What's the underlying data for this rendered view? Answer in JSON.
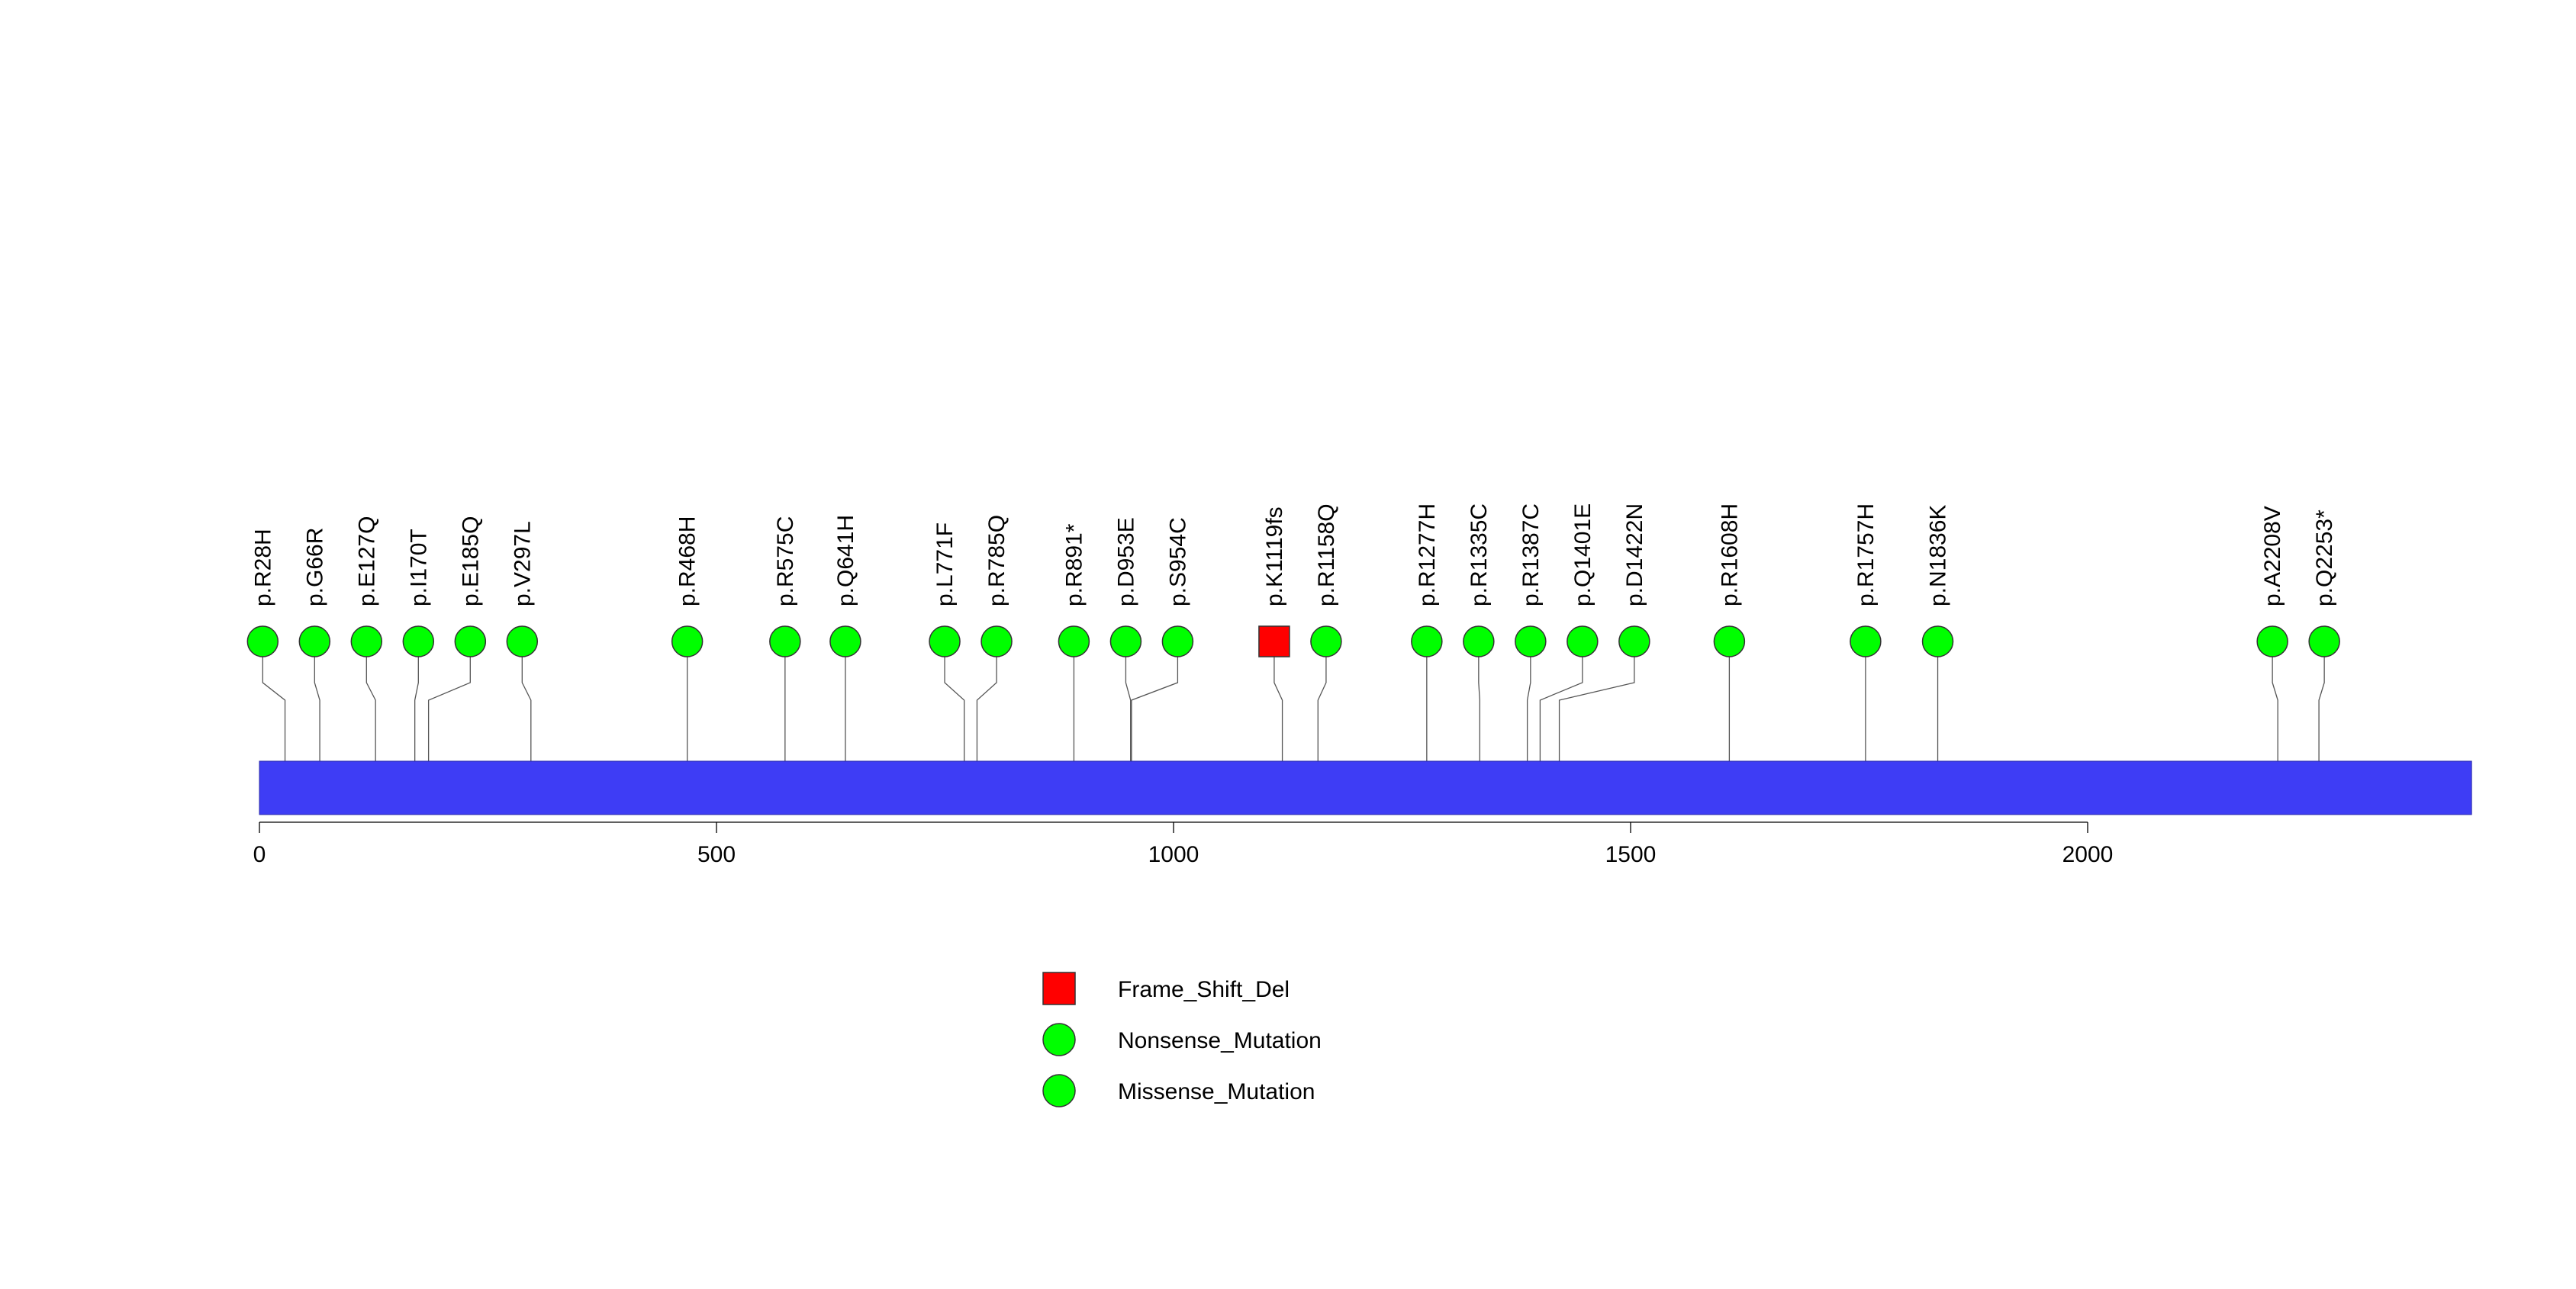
{
  "chart_data": {
    "type": "lollipop",
    "title": "",
    "xlabel": "",
    "ylabel": "",
    "xlim": [
      0,
      2420
    ],
    "x_ticks": [
      0,
      500,
      1000,
      1500,
      2000
    ],
    "x_tick_labels": [
      "0",
      "500",
      "1000",
      "1500",
      "2000"
    ],
    "protein_length": 2420,
    "protein_bar_color": "#3e3df5",
    "mutations": [
      {
        "label": "p.R28H",
        "position": 28,
        "type": "Missense_Mutation"
      },
      {
        "label": "p.G66R",
        "position": 66,
        "type": "Missense_Mutation"
      },
      {
        "label": "p.E127Q",
        "position": 127,
        "type": "Missense_Mutation"
      },
      {
        "label": "p.I170T",
        "position": 170,
        "type": "Missense_Mutation"
      },
      {
        "label": "p.E185Q",
        "position": 185,
        "type": "Missense_Mutation"
      },
      {
        "label": "p.V297L",
        "position": 297,
        "type": "Missense_Mutation"
      },
      {
        "label": "p.R468H",
        "position": 468,
        "type": "Missense_Mutation"
      },
      {
        "label": "p.R575C",
        "position": 575,
        "type": "Missense_Mutation"
      },
      {
        "label": "p.Q641H",
        "position": 641,
        "type": "Missense_Mutation"
      },
      {
        "label": "p.L771F",
        "position": 771,
        "type": "Missense_Mutation"
      },
      {
        "label": "p.R785Q",
        "position": 785,
        "type": "Missense_Mutation"
      },
      {
        "label": "p.R891*",
        "position": 891,
        "type": "Nonsense_Mutation"
      },
      {
        "label": "p.D953E",
        "position": 953,
        "type": "Missense_Mutation"
      },
      {
        "label": "p.S954C",
        "position": 954,
        "type": "Missense_Mutation"
      },
      {
        "label": "p.K1119fs",
        "position": 1119,
        "type": "Frame_Shift_Del"
      },
      {
        "label": "p.R1158Q",
        "position": 1158,
        "type": "Missense_Mutation"
      },
      {
        "label": "p.R1277H",
        "position": 1277,
        "type": "Missense_Mutation"
      },
      {
        "label": "p.R1335C",
        "position": 1335,
        "type": "Missense_Mutation"
      },
      {
        "label": "p.R1387C",
        "position": 1387,
        "type": "Missense_Mutation"
      },
      {
        "label": "p.Q1401E",
        "position": 1401,
        "type": "Missense_Mutation"
      },
      {
        "label": "p.D1422N",
        "position": 1422,
        "type": "Missense_Mutation"
      },
      {
        "label": "p.R1608H",
        "position": 1608,
        "type": "Missense_Mutation"
      },
      {
        "label": "p.R1757H",
        "position": 1757,
        "type": "Missense_Mutation"
      },
      {
        "label": "p.N1836K",
        "position": 1836,
        "type": "Missense_Mutation"
      },
      {
        "label": "p.A2208V",
        "position": 2208,
        "type": "Missense_Mutation"
      },
      {
        "label": "p.Q2253*",
        "position": 2253,
        "type": "Nonsense_Mutation"
      }
    ],
    "legend": [
      {
        "label": "Frame_Shift_Del",
        "shape": "square",
        "color": "#ff0000"
      },
      {
        "label": "Nonsense_Mutation",
        "shape": "circle",
        "color": "#00ff00"
      },
      {
        "label": "Missense_Mutation",
        "shape": "circle",
        "color": "#00ff00"
      }
    ],
    "legend_position": "bottom-center"
  }
}
